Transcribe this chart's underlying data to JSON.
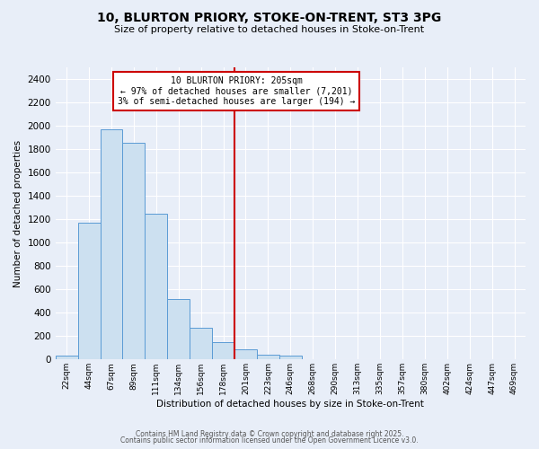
{
  "title": "10, BLURTON PRIORY, STOKE-ON-TRENT, ST3 3PG",
  "subtitle": "Size of property relative to detached houses in Stoke-on-Trent",
  "xlabel": "Distribution of detached houses by size in Stoke-on-Trent",
  "ylabel": "Number of detached properties",
  "bar_labels": [
    "22sqm",
    "44sqm",
    "67sqm",
    "89sqm",
    "111sqm",
    "134sqm",
    "156sqm",
    "178sqm",
    "201sqm",
    "223sqm",
    "246sqm",
    "268sqm",
    "290sqm",
    "313sqm",
    "335sqm",
    "357sqm",
    "380sqm",
    "402sqm",
    "424sqm",
    "447sqm",
    "469sqm"
  ],
  "bar_values": [
    30,
    1170,
    1970,
    1855,
    1245,
    520,
    275,
    150,
    85,
    40,
    35,
    0,
    5,
    0,
    0,
    0,
    0,
    0,
    0,
    0,
    0
  ],
  "bar_color": "#cce0f0",
  "bar_edge_color": "#5b9bd5",
  "bg_color": "#e8eef8",
  "grid_color": "#ffffff",
  "vline_index": 8,
  "vline_color": "#cc0000",
  "annotation_line1": "10 BLURTON PRIORY: 205sqm",
  "annotation_line2": "← 97% of detached houses are smaller (7,201)",
  "annotation_line3": "3% of semi-detached houses are larger (194) →",
  "annotation_box_color": "#ffffff",
  "annotation_edge_color": "#cc0000",
  "footer1": "Contains HM Land Registry data © Crown copyright and database right 2025.",
  "footer2": "Contains public sector information licensed under the Open Government Licence v3.0.",
  "ylim": [
    0,
    2500
  ],
  "yticks": [
    0,
    200,
    400,
    600,
    800,
    1000,
    1200,
    1400,
    1600,
    1800,
    2000,
    2200,
    2400
  ]
}
